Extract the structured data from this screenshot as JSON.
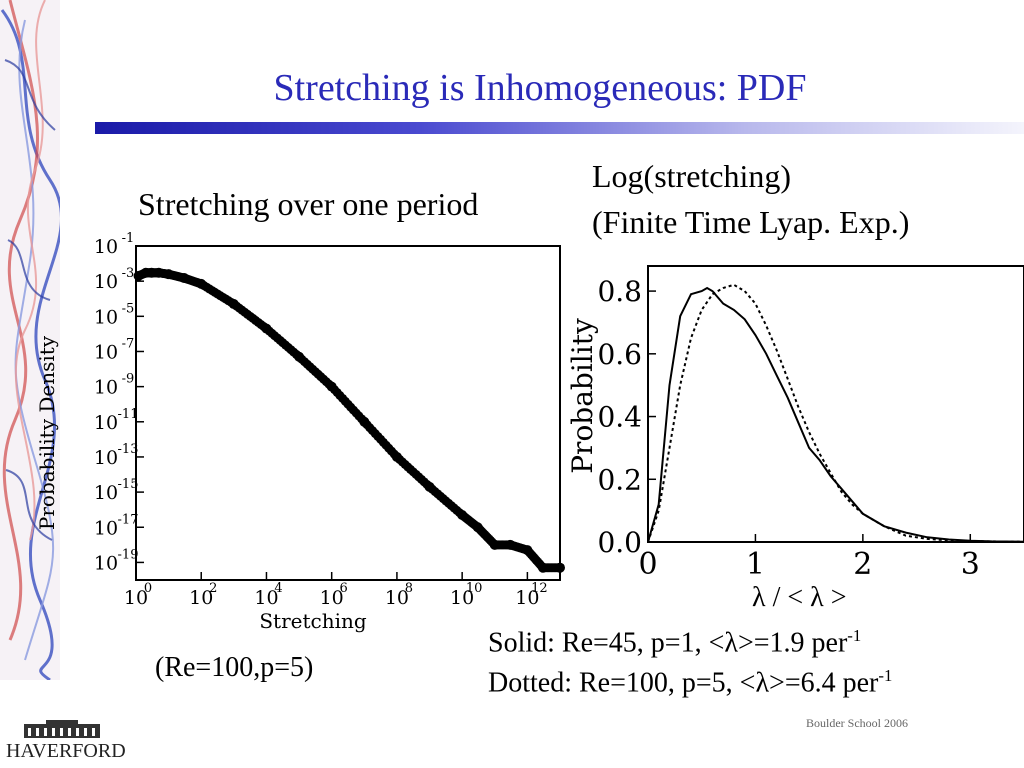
{
  "slide": {
    "title": "Stretching is Inhomogeneous:  PDF",
    "left_caption": "Stretching over one period",
    "right_caption_line1": "Log(stretching)",
    "right_caption_line2": "(Finite Time Lyap. Exp.)",
    "left_params": "(Re=100,p=5)",
    "lambda_label": "λ / < λ >",
    "legend_solid": {
      "text": "Solid: Re=45, p=1, <λ>=1.9 per",
      "sup": "-1"
    },
    "legend_dotted": {
      "text": "Dotted:  Re=100, p=5, <λ>=6.4 per",
      "sup": "-1"
    },
    "footer": "Boulder School 2006",
    "logo_text": "HAVERFORD",
    "colors": {
      "title": "#2a2ab8",
      "bar": "#1a1aa8",
      "series": "#000000"
    }
  },
  "chart_data": [
    {
      "type": "scatter",
      "xlabel": "Stretching",
      "ylabel": "Probability Density",
      "xscale": "log",
      "yscale": "log",
      "xlim": [
        1,
        10000000000000.0
      ],
      "ylim": [
        1e-20,
        0.1
      ],
      "xticks": [
        {
          "base": "10",
          "exp": "0"
        },
        {
          "base": "10",
          "exp": "2"
        },
        {
          "base": "10",
          "exp": "4"
        },
        {
          "base": "10",
          "exp": "6"
        },
        {
          "base": "10",
          "exp": "8"
        },
        {
          "base": "10",
          "exp": "10"
        },
        {
          "base": "10",
          "exp": "12"
        }
      ],
      "xtick_values": [
        1,
        100.0,
        10000.0,
        1000000.0,
        100000000.0,
        10000000000.0,
        1000000000000.0
      ],
      "yticks": [
        {
          "base": "10",
          "exp": "-1"
        },
        {
          "base": "10",
          "exp": "-3"
        },
        {
          "base": "10",
          "exp": "-5"
        },
        {
          "base": "10",
          "exp": "-7"
        },
        {
          "base": "10",
          "exp": "-9"
        },
        {
          "base": "10",
          "exp": "-11"
        },
        {
          "base": "10",
          "exp": "-13"
        },
        {
          "base": "10",
          "exp": "-15"
        },
        {
          "base": "10",
          "exp": "-17"
        },
        {
          "base": "10",
          "exp": "-19"
        }
      ],
      "ytick_values": [
        0.1,
        0.001,
        1e-05,
        1e-07,
        1e-09,
        1e-11,
        1e-13,
        1e-15,
        1e-17,
        1e-19
      ],
      "x": [
        1.2,
        2,
        3,
        5,
        10,
        30,
        100,
        1000.0,
        10000.0,
        100000.0,
        1000000.0,
        10000000.0,
        100000000.0,
        1000000000.0,
        10000000000.0,
        30000000000.0,
        100000000000.0,
        300000000000.0,
        1000000000000.0,
        3000000000000.0,
        10000000000000.0
      ],
      "y": [
        0.002,
        0.003,
        0.003,
        0.003,
        0.0025,
        0.0015,
        0.0007,
        5e-05,
        2e-06,
        5e-08,
        1e-09,
        1e-11,
        1e-13,
        2e-15,
        5e-17,
        1e-17,
        1e-18,
        1e-18,
        5e-19,
        5e-20,
        5e-20
      ]
    },
    {
      "type": "line",
      "xlabel": "",
      "ylabel": "Probability",
      "xlim": [
        0,
        3.5
      ],
      "ylim": [
        0,
        0.88
      ],
      "xticks": [
        "0",
        "1",
        "2",
        "3"
      ],
      "xtick_values": [
        0,
        1,
        2,
        3
      ],
      "yticks": [
        "0.0",
        "0.2",
        "0.4",
        "0.6",
        "0.8"
      ],
      "ytick_values": [
        0,
        0.2,
        0.4,
        0.6,
        0.8
      ],
      "series": [
        {
          "style": "solid",
          "x": [
            0,
            0.1,
            0.2,
            0.3,
            0.4,
            0.5,
            0.55,
            0.6,
            0.7,
            0.8,
            0.9,
            1.0,
            1.1,
            1.2,
            1.3,
            1.4,
            1.5,
            1.6,
            1.7,
            1.8,
            1.9,
            2.0,
            2.2,
            2.4,
            2.6,
            2.8,
            3.0,
            3.2,
            3.5
          ],
          "y": [
            0.0,
            0.12,
            0.5,
            0.72,
            0.79,
            0.8,
            0.81,
            0.8,
            0.76,
            0.74,
            0.71,
            0.66,
            0.6,
            0.53,
            0.46,
            0.38,
            0.3,
            0.26,
            0.21,
            0.17,
            0.13,
            0.09,
            0.05,
            0.03,
            0.015,
            0.008,
            0.004,
            0.002,
            0.001
          ]
        },
        {
          "style": "dotted",
          "x": [
            0,
            0.1,
            0.2,
            0.3,
            0.4,
            0.5,
            0.6,
            0.7,
            0.8,
            0.9,
            1.0,
            1.1,
            1.2,
            1.3,
            1.4,
            1.5,
            1.6,
            1.7,
            1.8,
            1.9,
            2.0,
            2.2,
            2.4,
            2.6,
            2.8,
            3.0,
            3.2,
            3.5
          ],
          "y": [
            0.0,
            0.1,
            0.3,
            0.5,
            0.65,
            0.74,
            0.79,
            0.81,
            0.82,
            0.8,
            0.76,
            0.69,
            0.61,
            0.52,
            0.43,
            0.35,
            0.28,
            0.22,
            0.16,
            0.12,
            0.09,
            0.05,
            0.02,
            0.01,
            0.005,
            0.003,
            0.002,
            0.001
          ]
        }
      ]
    }
  ]
}
